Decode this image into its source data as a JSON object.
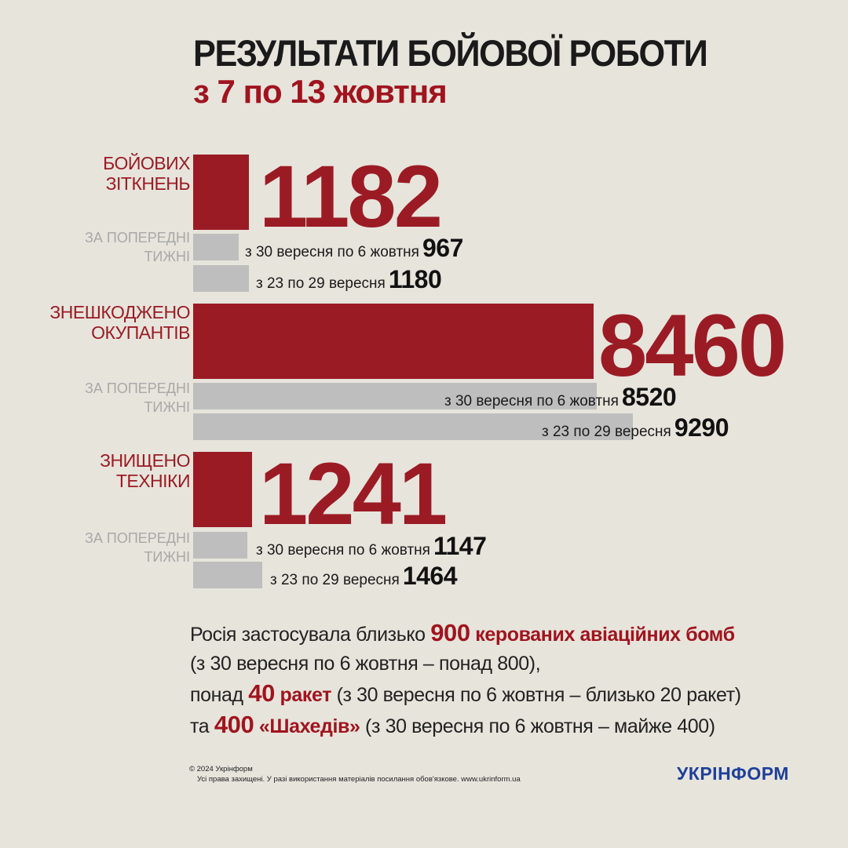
{
  "header": {
    "title": "РЕЗУЛЬТАТИ БОЙОВОЇ РОБОТИ",
    "subtitle": "з 7 по 13 жовтня"
  },
  "prev_label_line1": "ЗА ПОПЕРЕДНІ",
  "prev_label_line2": "ТИЖНІ",
  "chart_data": [
    {
      "type": "bar",
      "title": "БОЙОВИХ ЗІТКНЕНЬ",
      "categories": [
        "з 7 по 13 жовтня",
        "з 30 вересня по 6 жовтня",
        "з 23 по 29 вересня"
      ],
      "values": [
        1182,
        967,
        1180
      ],
      "label_lines": [
        "БОЙОВИХ",
        "ЗІТКНЕНЬ"
      ],
      "current": 1182,
      "prev": [
        {
          "label": "з 30 вересня по 6 жовтня",
          "value": 967
        },
        {
          "label": "з 23 по 29 вересня",
          "value": 1180
        }
      ]
    },
    {
      "type": "bar",
      "title": "ЗНЕШКОДЖЕНО ОКУПАНТІВ",
      "categories": [
        "з 7 по 13 жовтня",
        "з 30 вересня по 6 жовтня",
        "з 23 по 29 вересня"
      ],
      "values": [
        8460,
        8520,
        9290
      ],
      "label_lines": [
        "ЗНЕШКОДЖЕНО",
        "ОКУПАНТІВ"
      ],
      "current": 8460,
      "prev": [
        {
          "label": "з 30 вересня по 6 жовтня",
          "value": 8520
        },
        {
          "label": "з 23 по 29 вересня",
          "value": 9290
        }
      ]
    },
    {
      "type": "bar",
      "title": "ЗНИЩЕНО ТЕХНІКИ",
      "categories": [
        "з 7 по 13 жовтня",
        "з 30 вересня по 6 жовтня",
        "з 23 по 29 вересня"
      ],
      "values": [
        1241,
        1147,
        1464
      ],
      "label_lines": [
        "ЗНИЩЕНО",
        "ТЕХНІКИ"
      ],
      "current": 1241,
      "prev": [
        {
          "label": "з 30 вересня по 6 жовтня",
          "value": 1147
        },
        {
          "label": "з 23 по 29 вересня",
          "value": 1464
        }
      ]
    }
  ],
  "summary": {
    "line1": {
      "pre": "Росія застосувала близько ",
      "num": "900",
      "hl": " керованих авіаційних бомб"
    },
    "line2": "(з 30 вересня по 6 жовтня – понад 800),",
    "line3": {
      "pre": "понад ",
      "num": "40",
      "hl": " ракет",
      "post": " (з 30 вересня по 6 жовтня – близько 20 ракет)"
    },
    "line4": {
      "pre": "та  ",
      "num": "400",
      "hl": " «Шахедів»",
      "post": " (з 30 вересня по 6 жовтня – майже 400)"
    }
  },
  "footer": {
    "copyright": "© 2024 Укрінформ",
    "rights": "Усі права захищені. У разі використання матеріалів посилання обов'язкове. www.ukrinform.ua"
  },
  "brand": {
    "logo": "УКРІНФОРМ",
    "colors": {
      "accent": "#9b1b24",
      "prev_bar": "#bebebe",
      "background": "#e7e4dc",
      "logo": "#1e3f9a"
    }
  }
}
